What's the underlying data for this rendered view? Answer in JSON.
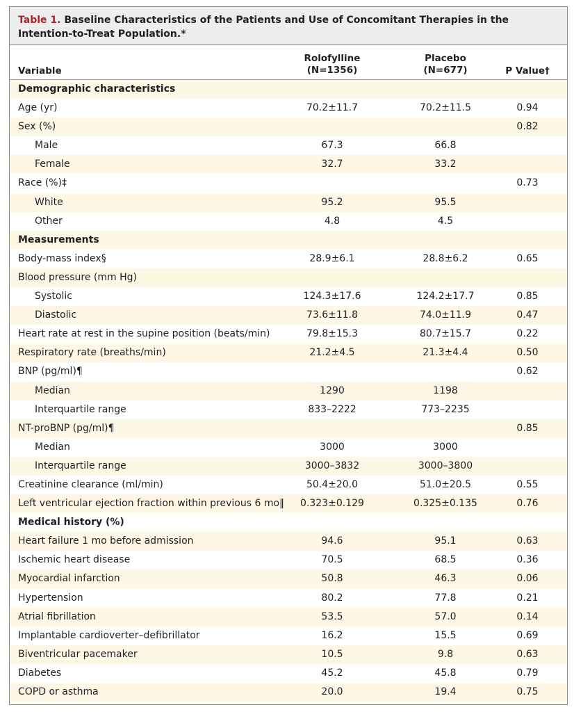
{
  "table": {
    "title_label": "Table 1.",
    "title_text": "Baseline Characteristics of the Patients and Use of Concomitant Therapies in the Intention-to-Treat Population.*",
    "headers": {
      "variable": "Variable",
      "rolofylline_name": "Rolofylline",
      "rolofylline_n": "(N=1356)",
      "placebo_name": "Placebo",
      "placebo_n": "(N=677)",
      "p_value": "P Value†"
    },
    "rows": [
      {
        "type": "section",
        "label": "Demographic characteristics",
        "rolofylline": "",
        "placebo": "",
        "p": ""
      },
      {
        "type": "main",
        "label": "Age (yr)",
        "rolofylline": "70.2±11.7",
        "placebo": "70.2±11.5",
        "p": "0.94"
      },
      {
        "type": "main",
        "label": "Sex (%)",
        "rolofylline": "",
        "placebo": "",
        "p": "0.82"
      },
      {
        "type": "sub",
        "label": "Male",
        "rolofylline": "67.3",
        "placebo": "66.8",
        "p": ""
      },
      {
        "type": "sub",
        "label": "Female",
        "rolofylline": "32.7",
        "placebo": "33.2",
        "p": ""
      },
      {
        "type": "main",
        "label": "Race (%)‡",
        "rolofylline": "",
        "placebo": "",
        "p": "0.73"
      },
      {
        "type": "sub",
        "label": "White",
        "rolofylline": "95.2",
        "placebo": "95.5",
        "p": ""
      },
      {
        "type": "sub",
        "label": "Other",
        "rolofylline": "4.8",
        "placebo": "4.5",
        "p": ""
      },
      {
        "type": "section",
        "label": "Measurements",
        "rolofylline": "",
        "placebo": "",
        "p": ""
      },
      {
        "type": "main",
        "label": "Body-mass index§",
        "rolofylline": "28.9±6.1",
        "placebo": "28.8±6.2",
        "p": "0.65"
      },
      {
        "type": "main",
        "label": "Blood pressure (mm Hg)",
        "rolofylline": "",
        "placebo": "",
        "p": ""
      },
      {
        "type": "sub",
        "label": "Systolic",
        "rolofylline": "124.3±17.6",
        "placebo": "124.2±17.7",
        "p": "0.85"
      },
      {
        "type": "sub",
        "label": "Diastolic",
        "rolofylline": "73.6±11.8",
        "placebo": "74.0±11.9",
        "p": "0.47"
      },
      {
        "type": "main",
        "label": "Heart rate at rest in the supine position (beats/min)",
        "rolofylline": "79.8±15.3",
        "placebo": "80.7±15.7",
        "p": "0.22"
      },
      {
        "type": "main",
        "label": "Respiratory rate (breaths/min)",
        "rolofylline": "21.2±4.5",
        "placebo": "21.3±4.4",
        "p": "0.50"
      },
      {
        "type": "main",
        "label": "BNP (pg/ml)¶",
        "rolofylline": "",
        "placebo": "",
        "p": "0.62"
      },
      {
        "type": "sub",
        "label": "Median",
        "rolofylline": "1290",
        "placebo": "1198",
        "p": ""
      },
      {
        "type": "sub",
        "label": "Interquartile range",
        "rolofylline": "833–2222",
        "placebo": "773–2235",
        "p": ""
      },
      {
        "type": "main",
        "label": "NT-proBNP (pg/ml)¶",
        "rolofylline": "",
        "placebo": "",
        "p": "0.85"
      },
      {
        "type": "sub",
        "label": "Median",
        "rolofylline": "3000",
        "placebo": "3000",
        "p": ""
      },
      {
        "type": "sub",
        "label": "Interquartile range",
        "rolofylline": "3000–3832",
        "placebo": "3000–3800",
        "p": ""
      },
      {
        "type": "main",
        "label": "Creatinine clearance (ml/min)",
        "rolofylline": "50.4±20.0",
        "placebo": "51.0±20.5",
        "p": "0.55"
      },
      {
        "type": "main",
        "label": "Left ventricular ejection fraction within previous 6 mo‖",
        "rolofylline": "0.323±0.129",
        "placebo": "0.325±0.135",
        "p": "0.76"
      },
      {
        "type": "section",
        "label": "Medical history (%)",
        "rolofylline": "",
        "placebo": "",
        "p": ""
      },
      {
        "type": "main",
        "label": "Heart failure 1 mo before admission",
        "rolofylline": "94.6",
        "placebo": "95.1",
        "p": "0.63"
      },
      {
        "type": "main",
        "label": "Ischemic heart disease",
        "rolofylline": "70.5",
        "placebo": "68.5",
        "p": "0.36"
      },
      {
        "type": "main",
        "label": "Myocardial infarction",
        "rolofylline": "50.8",
        "placebo": "46.3",
        "p": "0.06"
      },
      {
        "type": "main",
        "label": "Hypertension",
        "rolofylline": "80.2",
        "placebo": "77.8",
        "p": "0.21"
      },
      {
        "type": "main",
        "label": "Atrial fibrillation",
        "rolofylline": "53.5",
        "placebo": "57.0",
        "p": "0.14"
      },
      {
        "type": "main",
        "label": "Implantable cardioverter–defibrillator",
        "rolofylline": "16.2",
        "placebo": "15.5",
        "p": "0.69"
      },
      {
        "type": "main",
        "label": "Biventricular pacemaker",
        "rolofylline": "10.5",
        "placebo": "9.8",
        "p": "0.63"
      },
      {
        "type": "main",
        "label": "Diabetes",
        "rolofylline": "45.2",
        "placebo": "45.8",
        "p": "0.79"
      },
      {
        "type": "main",
        "label": "COPD or asthma",
        "rolofylline": "20.0",
        "placebo": "19.4",
        "p": "0.75"
      }
    ]
  },
  "colors": {
    "title_label": "#a3282e",
    "title_background": "#ededed",
    "row_shade": "#fdf7e5",
    "border": "#8a8a8a"
  }
}
